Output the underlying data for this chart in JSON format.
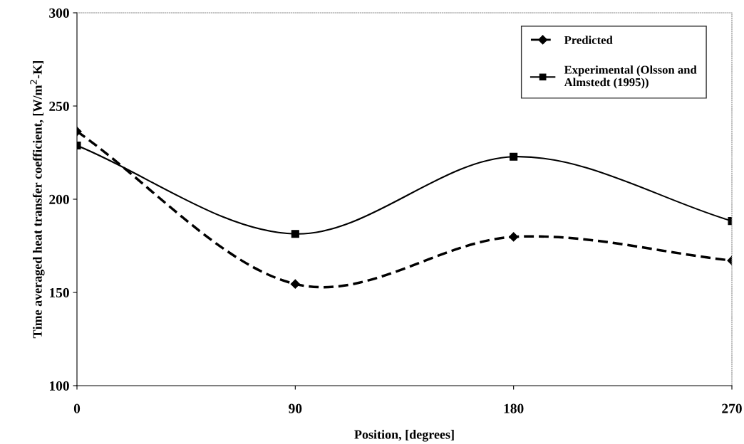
{
  "chart_data": {
    "type": "line",
    "xlabel": "Position, [degrees]",
    "ylabel": "Time averaged heat transfer coefficient, [W/m$^{2}$-K]",
    "x": [
      0,
      90,
      180,
      270
    ],
    "xlim": [
      0,
      270
    ],
    "xticks": [
      0,
      90,
      180,
      270
    ],
    "ylim": [
      100,
      300
    ],
    "yticks": [
      100,
      150,
      200,
      250,
      300
    ],
    "grid": false,
    "legend": "top right",
    "series": [
      {
        "name": "Predicted",
        "color": "#000000",
        "values": [
          236.4,
          154.5,
          179.8,
          167.1
        ],
        "marker": "diamond",
        "line_style": "dashed"
      },
      {
        "name": "Experimental (Olsson and Almstedt (1995))",
        "color": "#000000",
        "values": [
          228.8,
          181.4,
          222.8,
          188.3
        ],
        "marker": "square",
        "line_style": "solid"
      }
    ]
  }
}
